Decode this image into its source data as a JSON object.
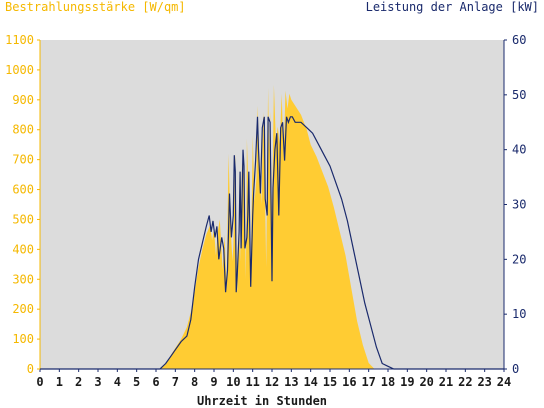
{
  "chart_data": {
    "type": "area",
    "title_left": "Bestrahlungsstärke [W/qm]",
    "title_right": "Leistung der Anlage [kW]",
    "xlabel": "Uhrzeit in Stunden",
    "xlim": [
      0,
      24
    ],
    "x_ticks": [
      "0",
      "1",
      "2",
      "3",
      "4",
      "5",
      "6",
      "7",
      "8",
      "9",
      "10",
      "11",
      "12",
      "13",
      "14",
      "15",
      "16",
      "17",
      "18",
      "19",
      "20",
      "21",
      "22",
      "23",
      "24"
    ],
    "y_left_lim": [
      0,
      1100
    ],
    "y_left_ticks": [
      "0",
      "100",
      "200",
      "300",
      "400",
      "500",
      "600",
      "700",
      "800",
      "900",
      "1000",
      "1100"
    ],
    "y_right_lim": [
      0,
      60
    ],
    "y_right_ticks": [
      "0",
      "10",
      "20",
      "30",
      "40",
      "50",
      "60"
    ],
    "grid": false,
    "colors": {
      "plot_bg": "#dcdcdc",
      "irradiance": "#ffcc33",
      "power": "#1a2a6c",
      "left_axis_text": "#f5b800",
      "right_axis_text": "#1a2a6c"
    },
    "series": [
      {
        "unit": "W/qm",
        "axis": "left",
        "x": [
          0,
          6.2,
          6.5,
          6.8,
          7.0,
          7.3,
          7.6,
          7.8,
          8.0,
          8.2,
          8.4,
          8.6,
          8.8,
          8.9,
          9.0,
          9.1,
          9.2,
          9.3,
          9.45,
          9.55,
          9.65,
          9.75,
          9.85,
          9.95,
          10.0,
          10.1,
          10.2,
          10.3,
          10.35,
          10.45,
          10.55,
          10.65,
          10.7,
          10.8,
          10.9,
          11.0,
          11.1,
          11.2,
          11.25,
          11.35,
          11.45,
          11.55,
          11.6,
          11.7,
          11.8,
          11.85,
          11.9,
          12.0,
          12.1,
          12.2,
          12.3,
          12.4,
          12.5,
          12.6,
          12.7,
          12.8,
          12.9,
          13.0,
          13.2,
          13.5,
          13.8,
          14.0,
          14.3,
          14.6,
          14.9,
          15.2,
          15.5,
          15.8,
          16.1,
          16.4,
          16.7,
          17.0,
          17.3,
          17.6,
          17.9,
          18.2,
          18.5,
          18.8,
          19.0,
          24
        ],
        "values": [
          0,
          0,
          15,
          50,
          70,
          100,
          140,
          190,
          260,
          340,
          400,
          450,
          480,
          430,
          470,
          380,
          460,
          500,
          330,
          450,
          260,
          720,
          490,
          360,
          410,
          720,
          250,
          490,
          360,
          690,
          640,
          300,
          770,
          560,
          300,
          780,
          560,
          640,
          880,
          700,
          550,
          860,
          720,
          340,
          940,
          730,
          860,
          500,
          950,
          760,
          810,
          750,
          920,
          700,
          930,
          870,
          920,
          900,
          880,
          850,
          800,
          750,
          710,
          660,
          610,
          540,
          460,
          380,
          270,
          160,
          80,
          20,
          0,
          0,
          0,
          0,
          0,
          0,
          0,
          0
        ]
      },
      {
        "unit": "kW",
        "axis": "right",
        "x": [
          0,
          6.2,
          6.5,
          6.8,
          7.0,
          7.3,
          7.6,
          7.8,
          8.0,
          8.2,
          8.4,
          8.6,
          8.75,
          8.85,
          8.95,
          9.05,
          9.15,
          9.25,
          9.4,
          9.5,
          9.6,
          9.7,
          9.8,
          9.9,
          10.0,
          10.05,
          10.1,
          10.15,
          10.2,
          10.3,
          10.35,
          10.4,
          10.5,
          10.55,
          10.6,
          10.7,
          10.75,
          10.8,
          10.9,
          11.0,
          11.05,
          11.15,
          11.25,
          11.3,
          11.4,
          11.5,
          11.6,
          11.65,
          11.75,
          11.8,
          11.9,
          12.0,
          12.05,
          12.15,
          12.25,
          12.35,
          12.45,
          12.55,
          12.65,
          12.75,
          12.85,
          12.95,
          13.05,
          13.2,
          13.5,
          13.8,
          14.1,
          14.4,
          14.7,
          15.0,
          15.3,
          15.6,
          15.9,
          16.2,
          16.5,
          16.8,
          17.1,
          17.4,
          17.7,
          18.0,
          18.3,
          18.6,
          18.8,
          19.0,
          24
        ],
        "values": [
          0,
          0,
          1,
          2.5,
          3.5,
          5,
          6,
          9,
          15,
          20,
          23,
          26,
          28,
          25,
          27,
          24,
          26,
          20,
          24,
          22,
          14,
          18,
          32,
          24,
          28,
          39,
          36,
          14,
          17,
          25,
          36,
          22,
          40,
          37,
          22,
          24,
          28,
          36,
          15,
          28,
          32,
          38,
          46,
          40,
          32,
          44,
          46,
          31,
          28,
          46,
          45,
          16,
          33,
          40,
          43,
          28,
          44,
          45,
          38,
          46,
          45,
          46,
          46,
          45,
          45,
          44,
          43,
          41,
          39,
          37,
          34,
          31,
          27,
          22,
          17,
          12,
          8,
          4,
          1,
          0.5,
          0,
          0,
          0,
          0,
          0
        ]
      }
    ]
  }
}
